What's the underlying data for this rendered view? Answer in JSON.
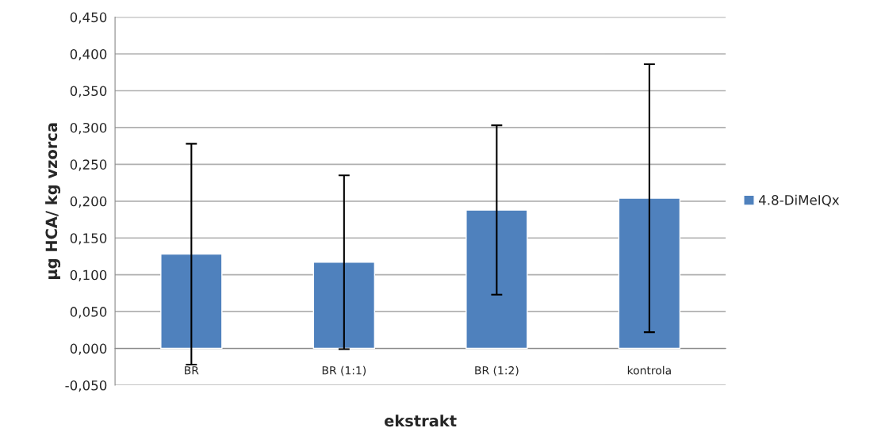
{
  "chart_data": {
    "type": "bar",
    "xlabel": "ekstrakt",
    "ylabel": "µg HCA/ kg vzorca",
    "categories": [
      "BR",
      "BR (1:1)",
      "BR (1:2)",
      "kontrola"
    ],
    "series": [
      {
        "name": "4.8-DiMeIQx",
        "color": "#4f81bd",
        "values": [
          0.128,
          0.117,
          0.188,
          0.204
        ],
        "errors": [
          0.15,
          0.118,
          0.115,
          0.182
        ]
      }
    ],
    "ylim": [
      -0.05,
      0.45
    ],
    "yticks": [
      {
        "value": -0.05,
        "label": "-0,050"
      },
      {
        "value": 0,
        "label": "0,000"
      },
      {
        "value": 0.05,
        "label": "0,050"
      },
      {
        "value": 0.1,
        "label": "0,100"
      },
      {
        "value": 0.15,
        "label": "0,150"
      },
      {
        "value": 0.2,
        "label": "0,200"
      },
      {
        "value": 0.25,
        "label": "0,250"
      },
      {
        "value": 0.3,
        "label": "0,300"
      },
      {
        "value": 0.35,
        "label": "0,350"
      },
      {
        "value": 0.4,
        "label": "0,400"
      },
      {
        "value": 0.45,
        "label": "0,450"
      }
    ],
    "grid": "y",
    "legend": "right"
  }
}
